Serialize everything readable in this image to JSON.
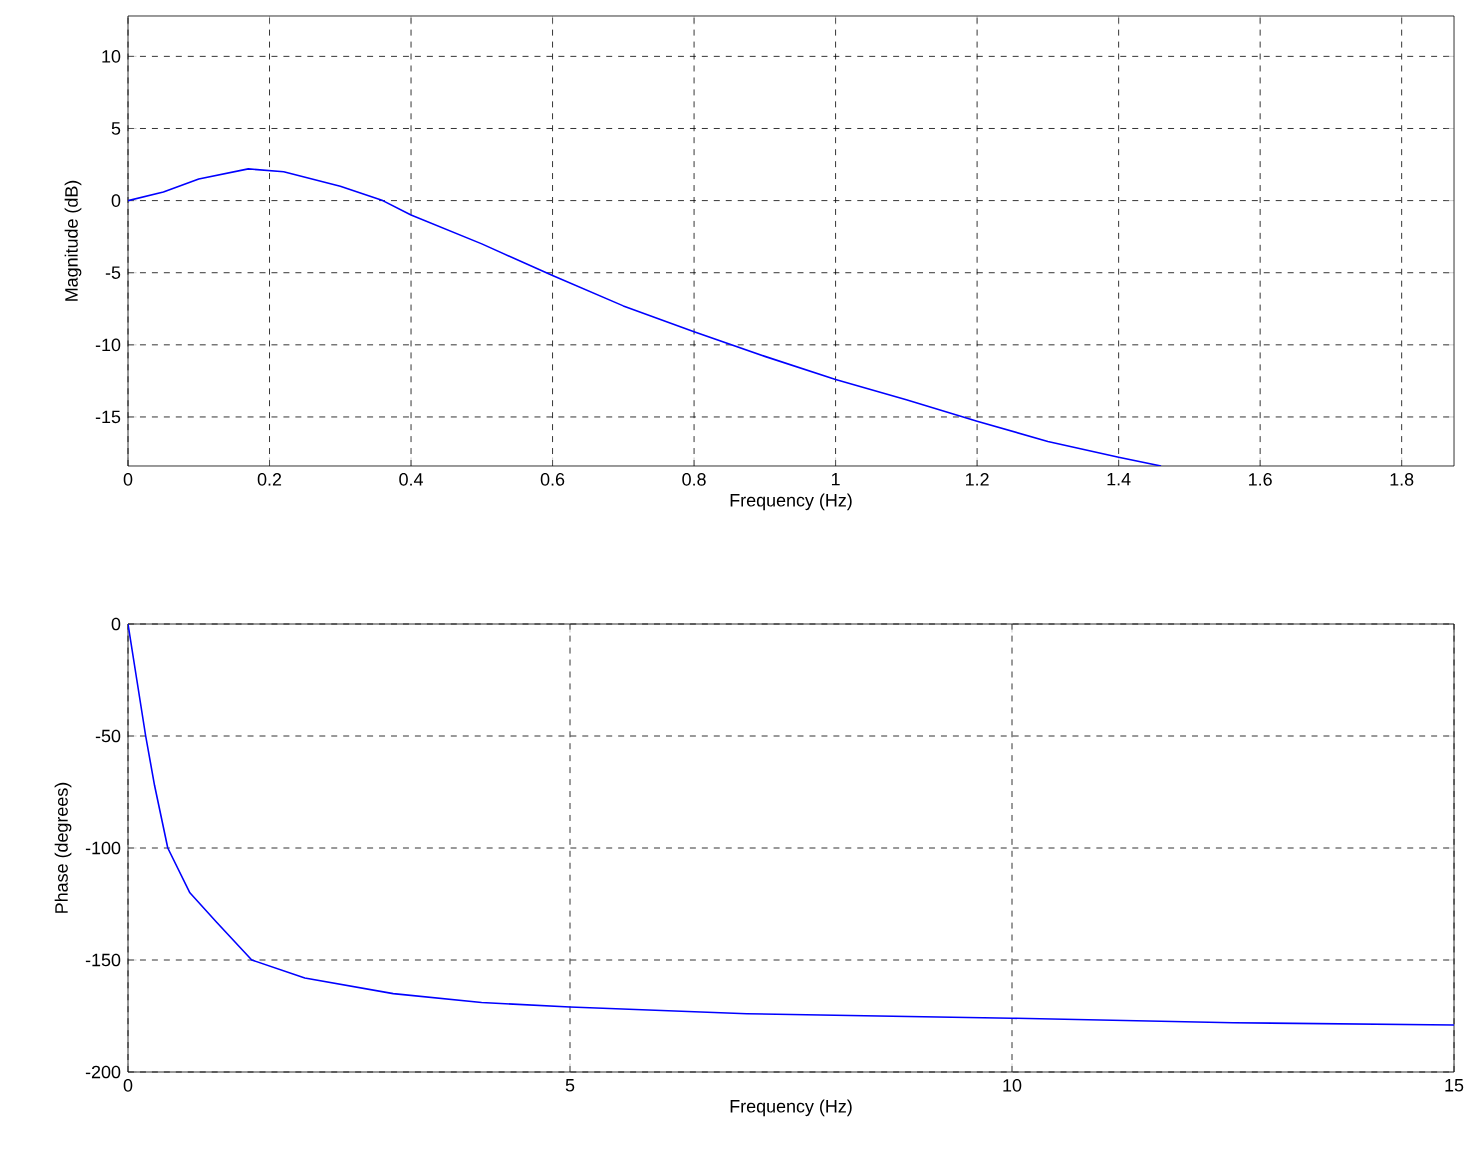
{
  "chart_data": [
    {
      "type": "line",
      "xlabel": "Frequency (Hz)",
      "ylabel": "Magnitude (dB)",
      "xlim": [
        0,
        1.874
      ],
      "ylim": [
        -18.4,
        12.8
      ],
      "xticks": [
        0,
        0.2,
        0.4,
        0.6,
        0.8,
        1,
        1.2,
        1.4,
        1.6,
        1.8
      ],
      "yticks": [
        -15,
        -10,
        -5,
        0,
        5,
        10
      ],
      "grid": true,
      "series": [
        {
          "color": "#0000ff",
          "x": [
            0,
            0.05,
            0.1,
            0.17,
            0.22,
            0.3,
            0.36,
            0.4,
            0.5,
            0.6,
            0.7,
            0.8,
            0.9,
            1.0,
            1.1,
            1.2,
            1.3,
            1.4,
            1.46
          ],
          "values": [
            0,
            0.6,
            1.5,
            2.2,
            2.0,
            1.0,
            0,
            -1,
            -3,
            -5.2,
            -7.3,
            -9.1,
            -10.8,
            -12.4,
            -13.8,
            -15.3,
            -16.7,
            -17.8,
            -18.4
          ]
        }
      ]
    },
    {
      "type": "line",
      "xlabel": "Frequency (Hz)",
      "ylabel": "Phase (degrees)",
      "xlim": [
        0,
        15
      ],
      "ylim": [
        -200,
        0
      ],
      "xticks": [
        0,
        5,
        10,
        15
      ],
      "yticks": [
        -200,
        -150,
        -100,
        -50,
        0
      ],
      "grid": true,
      "series": [
        {
          "color": "#0000ff",
          "x": [
            0,
            0.1,
            0.2,
            0.3,
            0.45,
            0.7,
            1.0,
            1.4,
            2,
            3,
            4,
            5,
            7,
            10,
            12.5,
            15
          ],
          "values": [
            0,
            -25,
            -50,
            -72,
            -100,
            -120,
            -133,
            -150,
            -158,
            -165,
            -169,
            -171,
            -174,
            -176,
            -178,
            -179
          ]
        }
      ]
    }
  ]
}
